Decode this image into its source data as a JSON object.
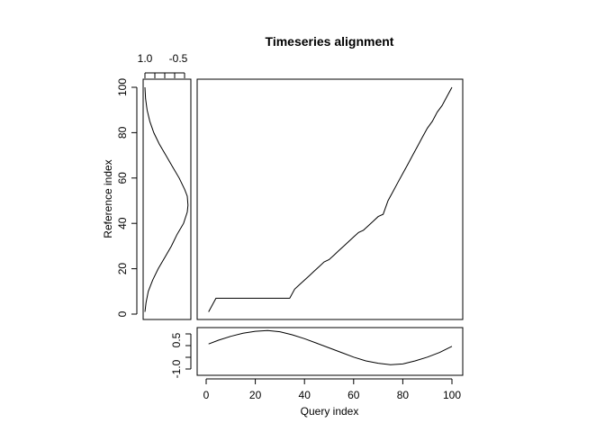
{
  "chart_data": {
    "type": "line",
    "title": "Timeseries alignment",
    "warping_path": {
      "xlabel": "Query index",
      "ylabel": "Reference index",
      "xlim": [
        0,
        100
      ],
      "ylim": [
        0,
        100
      ],
      "x_ticks": [
        "0",
        "20",
        "40",
        "60",
        "80",
        "100"
      ],
      "y_ticks": [
        "0",
        "20",
        "40",
        "60",
        "80",
        "100"
      ],
      "points": [
        [
          1,
          1
        ],
        [
          4,
          7
        ],
        [
          34,
          7
        ],
        [
          36,
          11
        ],
        [
          38,
          13
        ],
        [
          40,
          15
        ],
        [
          42,
          17
        ],
        [
          44,
          19
        ],
        [
          46,
          21
        ],
        [
          48,
          23
        ],
        [
          50,
          24
        ],
        [
          52,
          26
        ],
        [
          54,
          28
        ],
        [
          56,
          30
        ],
        [
          58,
          32
        ],
        [
          60,
          34
        ],
        [
          62,
          36
        ],
        [
          64,
          37
        ],
        [
          66,
          39
        ],
        [
          68,
          41
        ],
        [
          70,
          43
        ],
        [
          72,
          44
        ],
        [
          74,
          50
        ],
        [
          76,
          54
        ],
        [
          78,
          58
        ],
        [
          80,
          62
        ],
        [
          82,
          66
        ],
        [
          84,
          70
        ],
        [
          86,
          74
        ],
        [
          88,
          78
        ],
        [
          90,
          82
        ],
        [
          92,
          85
        ],
        [
          94,
          89
        ],
        [
          96,
          92
        ],
        [
          98,
          96
        ],
        [
          100,
          100
        ]
      ]
    },
    "query_series": {
      "y_ticks": [
        "-1.0",
        "0.5"
      ],
      "points": [
        [
          1,
          0.05
        ],
        [
          5,
          0.3
        ],
        [
          10,
          0.55
        ],
        [
          15,
          0.75
        ],
        [
          20,
          0.88
        ],
        [
          25,
          0.93
        ],
        [
          30,
          0.85
        ],
        [
          35,
          0.65
        ],
        [
          40,
          0.4
        ],
        [
          45,
          0.1
        ],
        [
          50,
          -0.2
        ],
        [
          55,
          -0.5
        ],
        [
          60,
          -0.8
        ],
        [
          65,
          -1.05
        ],
        [
          70,
          -1.2
        ],
        [
          75,
          -1.3
        ],
        [
          80,
          -1.25
        ],
        [
          85,
          -1.05
        ],
        [
          90,
          -0.8
        ],
        [
          95,
          -0.5
        ],
        [
          100,
          -0.1
        ]
      ]
    },
    "reference_series": {
      "x_ticks": [
        "1.0",
        "-0.5"
      ],
      "points": [
        [
          1,
          1
        ],
        [
          5,
          0.95
        ],
        [
          10,
          0.85
        ],
        [
          15,
          0.65
        ],
        [
          20,
          0.4
        ],
        [
          25,
          0.1
        ],
        [
          30,
          -0.2
        ],
        [
          35,
          -0.45
        ],
        [
          40,
          -0.75
        ],
        [
          45,
          -0.92
        ],
        [
          48,
          -0.95
        ],
        [
          52,
          -0.92
        ],
        [
          55,
          -0.8
        ],
        [
          60,
          -0.55
        ],
        [
          65,
          -0.25
        ],
        [
          70,
          0.05
        ],
        [
          75,
          0.35
        ],
        [
          80,
          0.6
        ],
        [
          85,
          0.78
        ],
        [
          90,
          0.9
        ],
        [
          95,
          0.97
        ],
        [
          100,
          1
        ]
      ]
    }
  }
}
